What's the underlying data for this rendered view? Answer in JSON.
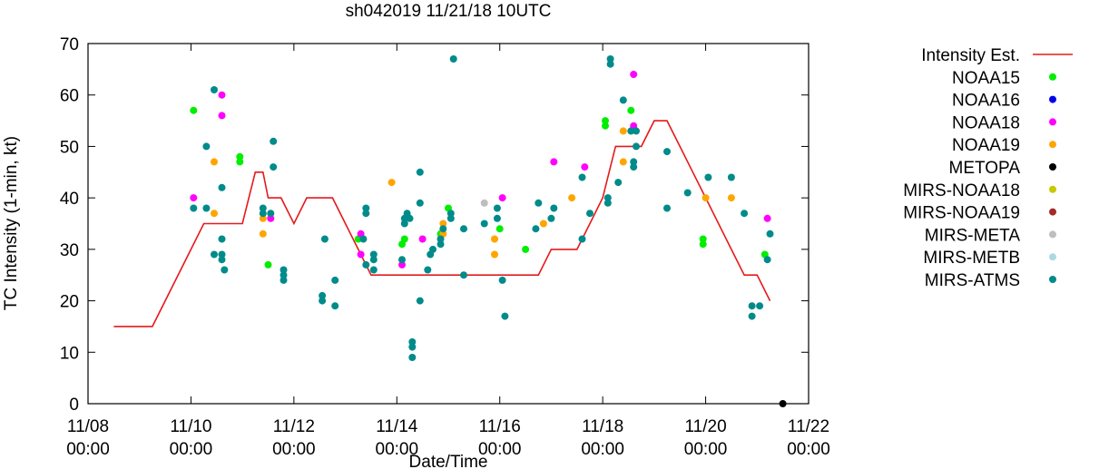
{
  "chart_data": {
    "type": "scatter",
    "title": "sh042019 11/21/18 10UTC",
    "xlabel": "Date/Time",
    "ylabel": "TC Intensity (1-min, kt)",
    "x_range_days": [
      0,
      14
    ],
    "ylim": [
      0,
      70
    ],
    "y_ticks": [
      "0",
      "10",
      "20",
      "30",
      "40",
      "50",
      "60",
      "70"
    ],
    "x_ticks": [
      {
        "day": 0,
        "date": "11/08",
        "time": "00:00"
      },
      {
        "day": 2,
        "date": "11/10",
        "time": "00:00"
      },
      {
        "day": 4,
        "date": "11/12",
        "time": "00:00"
      },
      {
        "day": 6,
        "date": "11/14",
        "time": "00:00"
      },
      {
        "day": 8,
        "date": "11/16",
        "time": "00:00"
      },
      {
        "day": 10,
        "date": "11/18",
        "time": "00:00"
      },
      {
        "day": 12,
        "date": "11/20",
        "time": "00:00"
      },
      {
        "day": 14,
        "date": "11/22",
        "time": "00:00"
      }
    ],
    "grid": false,
    "legend_position": "right",
    "line_series": {
      "name": "Intensity Est.",
      "color": "#e41a1c",
      "points": [
        [
          0.5,
          15
        ],
        [
          1.0,
          15
        ],
        [
          1.25,
          15
        ],
        [
          2.25,
          35
        ],
        [
          2.5,
          35
        ],
        [
          3.0,
          35
        ],
        [
          3.25,
          45
        ],
        [
          3.4,
          45
        ],
        [
          3.5,
          40
        ],
        [
          3.75,
          40
        ],
        [
          4.0,
          35
        ],
        [
          4.25,
          40
        ],
        [
          4.75,
          40
        ],
        [
          5.0,
          35
        ],
        [
          5.25,
          30
        ],
        [
          5.5,
          25
        ],
        [
          6.0,
          25
        ],
        [
          6.5,
          25
        ],
        [
          7.0,
          25
        ],
        [
          7.5,
          25
        ],
        [
          8.0,
          25
        ],
        [
          8.5,
          25
        ],
        [
          8.75,
          25
        ],
        [
          9.0,
          30
        ],
        [
          9.5,
          30
        ],
        [
          9.75,
          35
        ],
        [
          10.0,
          40
        ],
        [
          10.25,
          50
        ],
        [
          10.75,
          50
        ],
        [
          11.0,
          55
        ],
        [
          11.25,
          55
        ],
        [
          11.5,
          50
        ],
        [
          11.75,
          45
        ],
        [
          12.0,
          40
        ],
        [
          12.5,
          30
        ],
        [
          12.75,
          25
        ],
        [
          13.0,
          25
        ],
        [
          13.25,
          20
        ]
      ]
    },
    "scatter_series": [
      {
        "name": "NOAA15",
        "color": "#00ee00",
        "points": [
          [
            2.05,
            57
          ],
          [
            2.95,
            48
          ],
          [
            2.95,
            47
          ],
          [
            3.5,
            27
          ],
          [
            5.25,
            32
          ],
          [
            6.1,
            31
          ],
          [
            6.15,
            32
          ],
          [
            6.85,
            33
          ],
          [
            7.0,
            38
          ],
          [
            8.0,
            34
          ],
          [
            8.5,
            30
          ],
          [
            10.05,
            55
          ],
          [
            10.05,
            54
          ],
          [
            10.55,
            57
          ],
          [
            11.95,
            32
          ],
          [
            11.95,
            31
          ],
          [
            13.15,
            29
          ]
        ]
      },
      {
        "name": "NOAA16",
        "color": "#0000ee",
        "points": []
      },
      {
        "name": "NOAA18",
        "color": "#ff00ff",
        "points": [
          [
            2.05,
            40
          ],
          [
            2.6,
            60
          ],
          [
            2.6,
            56
          ],
          [
            3.55,
            36
          ],
          [
            5.3,
            33
          ],
          [
            5.3,
            29
          ],
          [
            6.1,
            27
          ],
          [
            6.5,
            32
          ],
          [
            8.05,
            40
          ],
          [
            9.05,
            47
          ],
          [
            9.65,
            46
          ],
          [
            10.6,
            64
          ],
          [
            10.6,
            54
          ],
          [
            13.2,
            36
          ]
        ]
      },
      {
        "name": "NOAA19",
        "color": "#ffa500",
        "points": [
          [
            2.45,
            47
          ],
          [
            2.45,
            37
          ],
          [
            3.4,
            36
          ],
          [
            3.4,
            33
          ],
          [
            5.9,
            43
          ],
          [
            6.9,
            35
          ],
          [
            6.9,
            33
          ],
          [
            7.9,
            32
          ],
          [
            7.9,
            29
          ],
          [
            8.85,
            35
          ],
          [
            9.4,
            40
          ],
          [
            10.4,
            53
          ],
          [
            10.4,
            47
          ],
          [
            12.0,
            40
          ],
          [
            12.5,
            40
          ]
        ]
      },
      {
        "name": "METOPA",
        "color": "#000000",
        "points": [
          [
            13.5,
            0
          ]
        ]
      },
      {
        "name": "MIRS-NOAA18",
        "color": "#c8c800",
        "points": []
      },
      {
        "name": "MIRS-NOAA19",
        "color": "#a52a2a",
        "points": []
      },
      {
        "name": "MIRS-META",
        "color": "#bebebe",
        "points": [
          [
            7.7,
            39
          ]
        ]
      },
      {
        "name": "MIRS-METB",
        "color": "#add8e6",
        "points": []
      },
      {
        "name": "MIRS-ATMS",
        "color": "#008b8b",
        "points": [
          [
            2.05,
            38
          ],
          [
            2.3,
            50
          ],
          [
            2.3,
            38
          ],
          [
            2.45,
            61
          ],
          [
            2.45,
            29
          ],
          [
            2.6,
            42
          ],
          [
            2.6,
            32
          ],
          [
            2.6,
            29
          ],
          [
            2.6,
            28
          ],
          [
            2.65,
            26
          ],
          [
            3.4,
            38
          ],
          [
            3.4,
            37
          ],
          [
            3.55,
            37
          ],
          [
            3.6,
            51
          ],
          [
            3.6,
            46
          ],
          [
            3.8,
            26
          ],
          [
            3.8,
            25
          ],
          [
            3.8,
            24
          ],
          [
            4.55,
            21
          ],
          [
            4.55,
            20
          ],
          [
            4.6,
            32
          ],
          [
            4.8,
            24
          ],
          [
            4.8,
            19
          ],
          [
            5.35,
            32
          ],
          [
            5.4,
            38
          ],
          [
            5.4,
            37
          ],
          [
            5.4,
            27
          ],
          [
            5.55,
            29
          ],
          [
            5.55,
            28
          ],
          [
            5.55,
            26
          ],
          [
            6.1,
            28
          ],
          [
            6.15,
            36
          ],
          [
            6.15,
            35
          ],
          [
            6.2,
            37
          ],
          [
            6.25,
            36
          ],
          [
            6.3,
            12
          ],
          [
            6.3,
            11
          ],
          [
            6.3,
            9
          ],
          [
            6.45,
            45
          ],
          [
            6.45,
            39
          ],
          [
            6.45,
            20
          ],
          [
            6.6,
            26
          ],
          [
            6.65,
            29
          ],
          [
            6.7,
            30
          ],
          [
            6.85,
            32
          ],
          [
            6.85,
            31
          ],
          [
            6.9,
            34
          ],
          [
            7.05,
            37
          ],
          [
            7.05,
            36
          ],
          [
            7.1,
            67
          ],
          [
            7.3,
            25
          ],
          [
            7.3,
            34
          ],
          [
            7.7,
            35
          ],
          [
            7.95,
            38
          ],
          [
            7.95,
            36
          ],
          [
            8.05,
            24
          ],
          [
            8.1,
            17
          ],
          [
            8.7,
            34
          ],
          [
            8.75,
            39
          ],
          [
            9.0,
            36
          ],
          [
            9.05,
            38
          ],
          [
            9.6,
            44
          ],
          [
            9.6,
            32
          ],
          [
            9.75,
            37
          ],
          [
            10.1,
            39
          ],
          [
            10.1,
            40
          ],
          [
            10.15,
            67
          ],
          [
            10.15,
            66
          ],
          [
            10.3,
            43
          ],
          [
            10.4,
            59
          ],
          [
            10.55,
            53
          ],
          [
            10.6,
            47
          ],
          [
            10.6,
            46
          ],
          [
            10.65,
            50
          ],
          [
            10.65,
            53
          ],
          [
            11.25,
            49
          ],
          [
            11.25,
            38
          ],
          [
            11.65,
            41
          ],
          [
            12.05,
            44
          ],
          [
            12.5,
            44
          ],
          [
            12.75,
            37
          ],
          [
            12.9,
            19
          ],
          [
            12.9,
            17
          ],
          [
            13.05,
            19
          ],
          [
            13.2,
            28
          ],
          [
            13.25,
            33
          ]
        ]
      }
    ]
  }
}
